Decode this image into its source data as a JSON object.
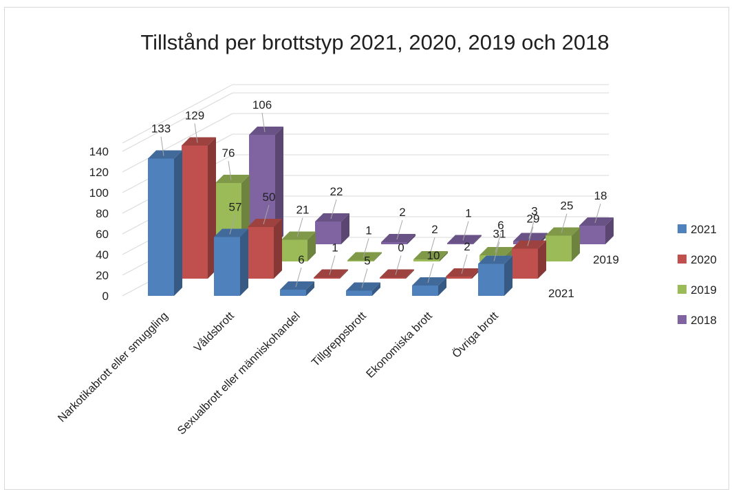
{
  "chart_data": {
    "type": "bar",
    "title": "Tillstånd per brottstyp 2021, 2020, 2019 och 2018",
    "categories": [
      "Narkotikabrott eller smuggling",
      "Våldsbrott",
      "Sexualbrott eller människohandel",
      "Tillgreppsbrott",
      "Ekonomiska brott",
      "Övriga brott"
    ],
    "series": [
      {
        "name": "2021",
        "color": "#4f81bd",
        "values": [
          133,
          57,
          6,
          5,
          10,
          31
        ]
      },
      {
        "name": "2020",
        "color": "#c0504d",
        "values": [
          129,
          50,
          1,
          0,
          2,
          29
        ]
      },
      {
        "name": "2019",
        "color": "#9bbb59",
        "values": [
          76,
          21,
          1,
          2,
          6,
          25
        ]
      },
      {
        "name": "2018",
        "color": "#8064a2",
        "values": [
          106,
          22,
          2,
          1,
          3,
          18
        ]
      }
    ],
    "depth_axis_labels": [
      "2021",
      "2019"
    ],
    "yticks": [
      0,
      20,
      40,
      60,
      80,
      100,
      120,
      140
    ],
    "ylim": [
      0,
      140
    ],
    "grid": true,
    "legend_position": "right"
  }
}
